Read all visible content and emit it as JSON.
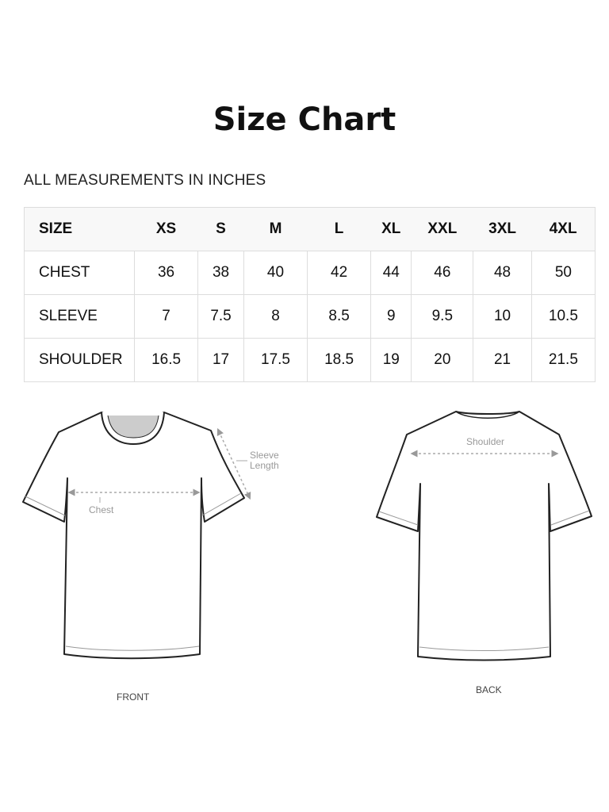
{
  "title": "Size Chart",
  "subtitle": "ALL MEASUREMENTS IN INCHES",
  "table": {
    "header": [
      "SIZE",
      "XS",
      "S",
      "M",
      "L",
      "XL",
      "XXL",
      "3XL",
      "4XL"
    ],
    "rows": [
      {
        "label": "CHEST",
        "values": [
          "36",
          "38",
          "40",
          "42",
          "44",
          "46",
          "48",
          "50"
        ]
      },
      {
        "label": "SLEEVE",
        "values": [
          "7",
          "7.5",
          "8",
          "8.5",
          "9",
          "9.5",
          "10",
          "10.5"
        ]
      },
      {
        "label": "SHOULDER",
        "values": [
          "16.5",
          "17",
          "17.5",
          "18.5",
          "19",
          "20",
          "21",
          "21.5"
        ]
      }
    ]
  },
  "illustration": {
    "front_label": "FRONT",
    "back_label": "BACK",
    "chest_label": "Chest",
    "sleeve_label_1": "Sleeve",
    "sleeve_label_2": "Length",
    "shoulder_label": "Shoulder"
  }
}
